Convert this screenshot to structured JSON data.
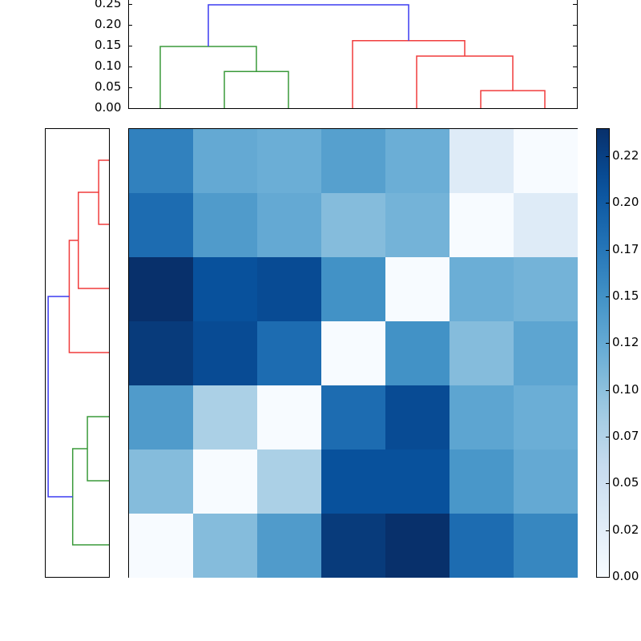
{
  "chart_data": {
    "type": "heatmap",
    "title": "",
    "description": "Clustered heatmap (distance matrix) with row and column dendrograms and a colorbar",
    "n": 7,
    "colormap": "Blues",
    "color_range": [
      0.0,
      0.24
    ],
    "matrix": [
      [
        0.165,
        0.125,
        0.12,
        0.135,
        0.12,
        0.03,
        0.0
      ],
      [
        0.185,
        0.14,
        0.125,
        0.105,
        0.115,
        0.0,
        0.03
      ],
      [
        0.24,
        0.21,
        0.215,
        0.15,
        0.0,
        0.12,
        0.115
      ],
      [
        0.23,
        0.215,
        0.185,
        0.0,
        0.15,
        0.105,
        0.13
      ],
      [
        0.14,
        0.08,
        0.0,
        0.185,
        0.215,
        0.13,
        0.12
      ],
      [
        0.105,
        0.0,
        0.08,
        0.21,
        0.21,
        0.145,
        0.125
      ],
      [
        0.0,
        0.105,
        0.14,
        0.23,
        0.24,
        0.185,
        0.16
      ]
    ],
    "colorbar": {
      "ticks": [
        "0.00",
        "0.02",
        "0.05",
        "0.07",
        "0.10",
        "0.12",
        "0.15",
        "0.17",
        "0.20",
        "0.22"
      ],
      "tick_values": [
        0.0,
        0.025,
        0.05,
        0.075,
        0.1,
        0.125,
        0.15,
        0.175,
        0.2,
        0.225
      ]
    },
    "top_dendrogram": {
      "ylabel": "",
      "yticks": [
        "0.00",
        "0.05",
        "0.10",
        "0.15",
        "0.20",
        "0.25"
      ],
      "ylim": [
        0.0,
        0.25
      ],
      "links": [
        {
          "left": 1,
          "right": 2,
          "height": 0.088,
          "color": "green"
        },
        {
          "left": 0,
          "right": "(1,2)",
          "height": 0.148,
          "color": "green"
        },
        {
          "left": 5,
          "right": 6,
          "height": 0.042,
          "color": "red"
        },
        {
          "left": 4,
          "right": "(5,6)",
          "height": 0.125,
          "color": "red"
        },
        {
          "left": 3,
          "right": "(4,5,6)",
          "height": 0.162,
          "color": "red"
        },
        {
          "left": "(0,1,2)",
          "right": "(3,4,5,6)",
          "height": 0.248,
          "color": "blue"
        }
      ]
    },
    "left_dendrogram": {
      "links": [
        {
          "top": 0,
          "bottom": 1,
          "height": 0.042,
          "color": "red"
        },
        {
          "top": "(0,1)",
          "bottom": 2,
          "height": 0.125,
          "color": "red"
        },
        {
          "top": "(0,1,2)",
          "bottom": 3,
          "height": 0.162,
          "color": "red"
        },
        {
          "top": 4,
          "bottom": 5,
          "height": 0.088,
          "color": "green"
        },
        {
          "top": "(4,5)",
          "bottom": 6,
          "height": 0.148,
          "color": "green"
        },
        {
          "top": "(0..3)",
          "bottom": "(4..6)",
          "height": 0.248,
          "color": "blue"
        }
      ]
    },
    "grid": false,
    "legend": null
  },
  "colors": {
    "green": "#3a9a3a",
    "red": "#f03c3c",
    "blue": "#3c3cf0"
  }
}
